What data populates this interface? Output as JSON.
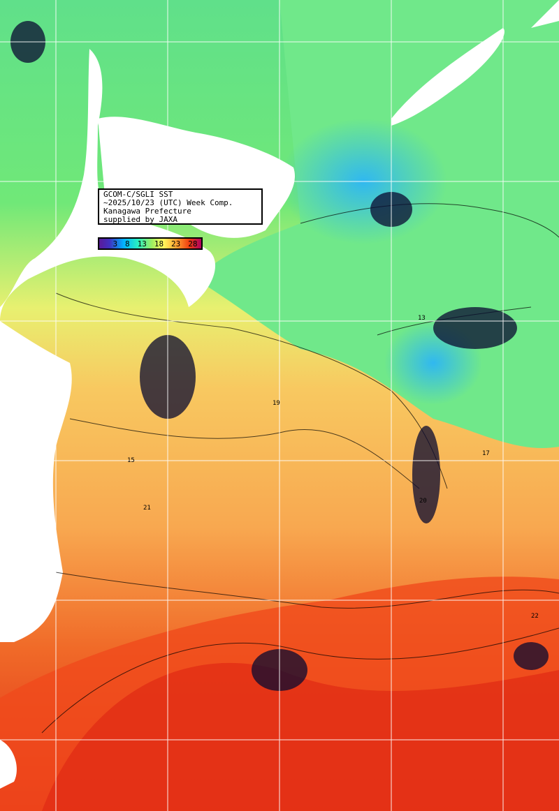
{
  "info": {
    "line1": "GCOM-C/SGLI SST",
    "line2": "~2025/10/23 (UTC) Week Comp.",
    "line3": "Kanagawa Prefecture",
    "line4": "supplied by JAXA"
  },
  "colorbar": {
    "ticks": [
      "3",
      "8",
      "13",
      "18",
      "23",
      "28"
    ],
    "unit_colors": [
      "#5a1a9a",
      "#00b4ff",
      "#2af0c0",
      "#ffff60",
      "#ffa030",
      "#f04010",
      "#b00060"
    ]
  },
  "contour_labels": [
    "13",
    "15",
    "17",
    "19",
    "20",
    "21",
    "22"
  ]
}
